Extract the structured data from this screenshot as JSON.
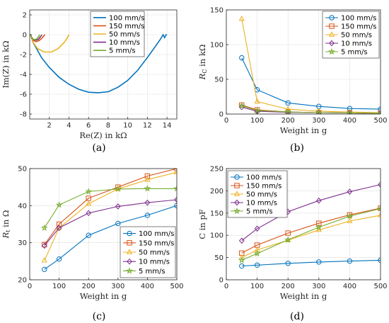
{
  "colors": {
    "100 mm/s": "#0072BD",
    "150 mm/s": "#D95319",
    "50 mm/s": "#EDB120",
    "10 mm/s": "#7E2F8E",
    "5 mm/s": "#77AC30"
  },
  "chart_data": [
    {
      "id": "a",
      "type": "line",
      "caption": "(a)",
      "xlabel": "Re(Z) in kΩ",
      "ylabel": "Im(Z) in kΩ",
      "xlim": [
        0,
        15
      ],
      "ylim": [
        -8.5,
        2.5
      ],
      "xticks": [
        2,
        4,
        6,
        8,
        10,
        12,
        14
      ],
      "yticks": [
        2,
        0,
        -2,
        -4,
        -6,
        -8
      ],
      "grid": true,
      "legend": "top-right",
      "series": [
        {
          "name": "100 mm/s",
          "x": [
            0.1,
            0.3,
            0.7,
            1.2,
            2.0,
            3.0,
            4.0,
            5.0,
            6.0,
            7.0,
            8.0,
            9.0,
            10.0,
            11.0,
            12.0,
            12.8,
            13.3,
            13.6,
            13.75,
            13.9,
            14.0
          ],
          "y": [
            0,
            -0.7,
            -1.4,
            -2.3,
            -3.3,
            -4.3,
            -5.0,
            -5.5,
            -5.8,
            -5.85,
            -5.75,
            -5.3,
            -4.6,
            -3.6,
            -2.3,
            -1.2,
            -0.5,
            0.0,
            -0.3,
            0.0,
            0.0
          ]
        },
        {
          "name": "150 mm/s",
          "x": [
            0.1,
            0.2,
            0.4,
            0.65,
            0.95,
            1.25,
            1.45,
            1.55
          ],
          "y": [
            0,
            -0.35,
            -0.6,
            -0.7,
            -0.6,
            -0.35,
            -0.1,
            0
          ]
        },
        {
          "name": "50 mm/s",
          "x": [
            0.1,
            0.3,
            0.8,
            1.5,
            2.2,
            2.9,
            3.5,
            3.85,
            4.0
          ],
          "y": [
            0,
            -0.7,
            -1.4,
            -1.75,
            -1.75,
            -1.4,
            -0.8,
            -0.3,
            0
          ]
        },
        {
          "name": "10 mm/s",
          "x": [
            0.1,
            0.2,
            0.4,
            0.65,
            0.9,
            1.1,
            1.25
          ],
          "y": [
            0,
            -0.3,
            -0.5,
            -0.55,
            -0.45,
            -0.2,
            0
          ]
        },
        {
          "name": "5 mm/s",
          "x": [
            0.1,
            0.2,
            0.35,
            0.55,
            0.75,
            0.9,
            1.0
          ],
          "y": [
            0,
            -0.25,
            -0.45,
            -0.5,
            -0.4,
            -0.2,
            0
          ]
        }
      ]
    },
    {
      "id": "b",
      "type": "line",
      "caption": "(b)",
      "xlabel": "Weight in g",
      "ylabel": "R_C in kΩ",
      "xlim": [
        0,
        500
      ],
      "ylim": [
        0,
        150
      ],
      "xticks": [
        0,
        100,
        200,
        300,
        400,
        500
      ],
      "yticks": [
        0,
        50,
        100,
        150
      ],
      "grid": true,
      "legend": "top-right",
      "x": [
        50,
        100,
        200,
        300,
        400,
        500
      ],
      "series": [
        {
          "name": "100 mm/s",
          "marker": "circle",
          "values": [
            81,
            35,
            16,
            11,
            8,
            7
          ]
        },
        {
          "name": "150 mm/s",
          "marker": "square",
          "values": [
            13,
            6,
            3,
            2,
            1.5,
            1
          ]
        },
        {
          "name": "50 mm/s",
          "marker": "triangle",
          "values": [
            137,
            18,
            7,
            4,
            3,
            2
          ]
        },
        {
          "name": "10 mm/s",
          "marker": "diamond",
          "values": [
            10,
            4,
            2.5,
            2,
            1.5,
            1
          ]
        },
        {
          "name": "5 mm/s",
          "marker": "star",
          "values": [
            12,
            5,
            3,
            2,
            1.5,
            1
          ]
        }
      ]
    },
    {
      "id": "c",
      "type": "line",
      "caption": "(c)",
      "xlabel": "Weight in g",
      "ylabel": "R_t in Ω",
      "xlim": [
        0,
        500
      ],
      "ylim": [
        20,
        50
      ],
      "xticks": [
        0,
        100,
        200,
        300,
        400,
        500
      ],
      "yticks": [
        20,
        30,
        40,
        50
      ],
      "grid": true,
      "legend": "bottom-right",
      "x": [
        50,
        100,
        200,
        300,
        400,
        500
      ],
      "series": [
        {
          "name": "100 mm/s",
          "marker": "circle",
          "values": [
            22.8,
            25.6,
            32,
            35.2,
            37.4,
            40
          ]
        },
        {
          "name": "150 mm/s",
          "marker": "square",
          "values": [
            29.5,
            35,
            42,
            45,
            48,
            50
          ]
        },
        {
          "name": "50 mm/s",
          "marker": "triangle",
          "values": [
            25.2,
            34,
            40.5,
            44.5,
            47,
            49
          ]
        },
        {
          "name": "10 mm/s",
          "marker": "diamond",
          "values": [
            29.2,
            34,
            38,
            39.8,
            40.8,
            41.6
          ]
        },
        {
          "name": "5 mm/s",
          "marker": "star",
          "values": [
            34,
            40.2,
            43.8,
            44.5,
            44.6,
            44.6
          ]
        }
      ]
    },
    {
      "id": "d",
      "type": "line",
      "caption": "(d)",
      "xlabel": "Weight in g",
      "ylabel": "C in pF",
      "xlim": [
        0,
        500
      ],
      "ylim": [
        0,
        250
      ],
      "xticks": [
        0,
        100,
        200,
        300,
        400,
        500
      ],
      "yticks": [
        0,
        50,
        100,
        150,
        200,
        250
      ],
      "grid": true,
      "legend": "top-left",
      "x": [
        50,
        100,
        200,
        300,
        400,
        500
      ],
      "series": [
        {
          "name": "100 mm/s",
          "marker": "circle",
          "values": [
            31,
            33,
            37,
            40,
            42,
            44
          ]
        },
        {
          "name": "150 mm/s",
          "marker": "square",
          "values": [
            60,
            78,
            105,
            127,
            146,
            161
          ]
        },
        {
          "name": "50 mm/s",
          "marker": "triangle",
          "values": [
            50,
            67,
            89,
            112,
            132,
            145
          ]
        },
        {
          "name": "10 mm/s",
          "marker": "diamond",
          "values": [
            88,
            115,
            153,
            178,
            198,
            214
          ]
        },
        {
          "name": "5 mm/s",
          "marker": "star",
          "values": [
            44,
            59,
            90,
            118,
            143,
            160
          ]
        }
      ]
    }
  ]
}
